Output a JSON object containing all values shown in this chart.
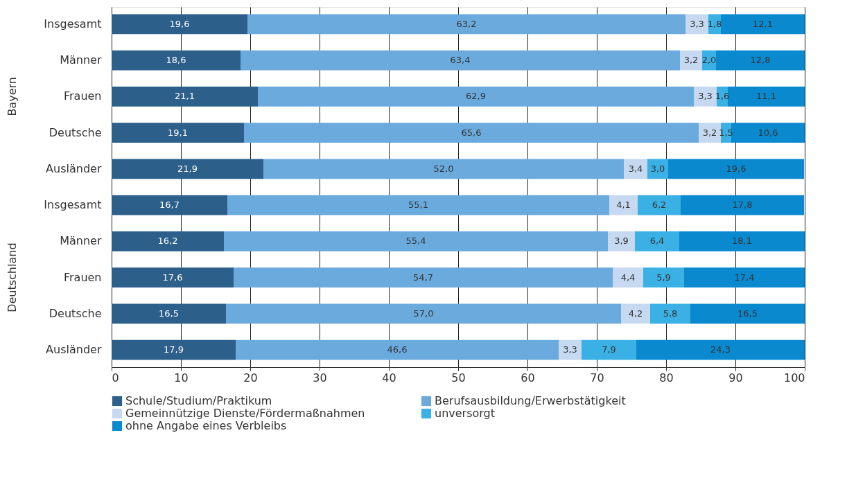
{
  "chart_data": {
    "type": "bar",
    "orientation": "horizontal",
    "stacked": true,
    "categories": [
      "Insgesamt",
      "Männer",
      "Frauen",
      "Deutsche",
      "Ausländer",
      "Insgesamt",
      "Männer",
      "Frauen",
      "Deutsche",
      "Ausländer"
    ],
    "series": [
      {
        "name": "Schule/Studium/Praktikum",
        "color": "#2d5f8b",
        "values": [
          19.6,
          18.6,
          21.1,
          19.1,
          21.9,
          16.7,
          16.2,
          17.6,
          16.5,
          17.9
        ],
        "value_labels": [
          "19,6",
          "18,6",
          "21,1",
          "19,1",
          "21,9",
          "16,7",
          "16,2",
          "17,6",
          "16,5",
          "17,9"
        ]
      },
      {
        "name": "Berufsausbildung/Erwerbstätigkeit",
        "color": "#6aaadd",
        "values": [
          63.2,
          63.4,
          62.9,
          65.6,
          52.0,
          55.1,
          55.4,
          54.7,
          57.0,
          46.6
        ],
        "value_labels": [
          "63,2",
          "63,4",
          "62,9",
          "65,6",
          "52,0",
          "55,1",
          "55,4",
          "54,7",
          "57,0",
          "46,6"
        ]
      },
      {
        "name": "Gemeinnützige Dienste/Fördermaßnahmen",
        "color": "#c6d9f0",
        "values": [
          3.3,
          3.2,
          3.3,
          3.2,
          3.4,
          4.1,
          3.9,
          4.4,
          4.2,
          3.3
        ],
        "value_labels": [
          "3,3",
          "3,2",
          "3,3",
          "3,2",
          "3,4",
          "4,1",
          "3,9",
          "4,4",
          "4,2",
          "3,3"
        ]
      },
      {
        "name": "unversorgt",
        "color": "#3bb0e4",
        "values": [
          1.8,
          2.0,
          1.6,
          1.5,
          3.0,
          6.2,
          6.4,
          5.9,
          5.8,
          7.9
        ],
        "value_labels": [
          "1,8",
          "2,0",
          "1,6",
          "1,5",
          "3,0",
          "6,2",
          "6,4",
          "5,9",
          "5,8",
          "7,9"
        ]
      },
      {
        "name": "ohne Angabe eines Verbleibs",
        "color": "#0a89cf",
        "values": [
          12.1,
          12.8,
          11.1,
          10.6,
          19.6,
          17.8,
          18.1,
          17.4,
          16.5,
          24.3
        ],
        "value_labels": [
          "12,1",
          "12,8",
          "11,1",
          "10,6",
          "19,6",
          "17,8",
          "18,1",
          "17,4",
          "16,5",
          "24,3"
        ]
      }
    ],
    "xlim": [
      0,
      100
    ],
    "xticks": [
      0,
      10,
      20,
      30,
      40,
      50,
      60,
      70,
      80,
      90,
      100
    ],
    "grid": "x",
    "legend": "bottom",
    "annotations": [
      "Bayern",
      "Deutschland"
    ]
  }
}
